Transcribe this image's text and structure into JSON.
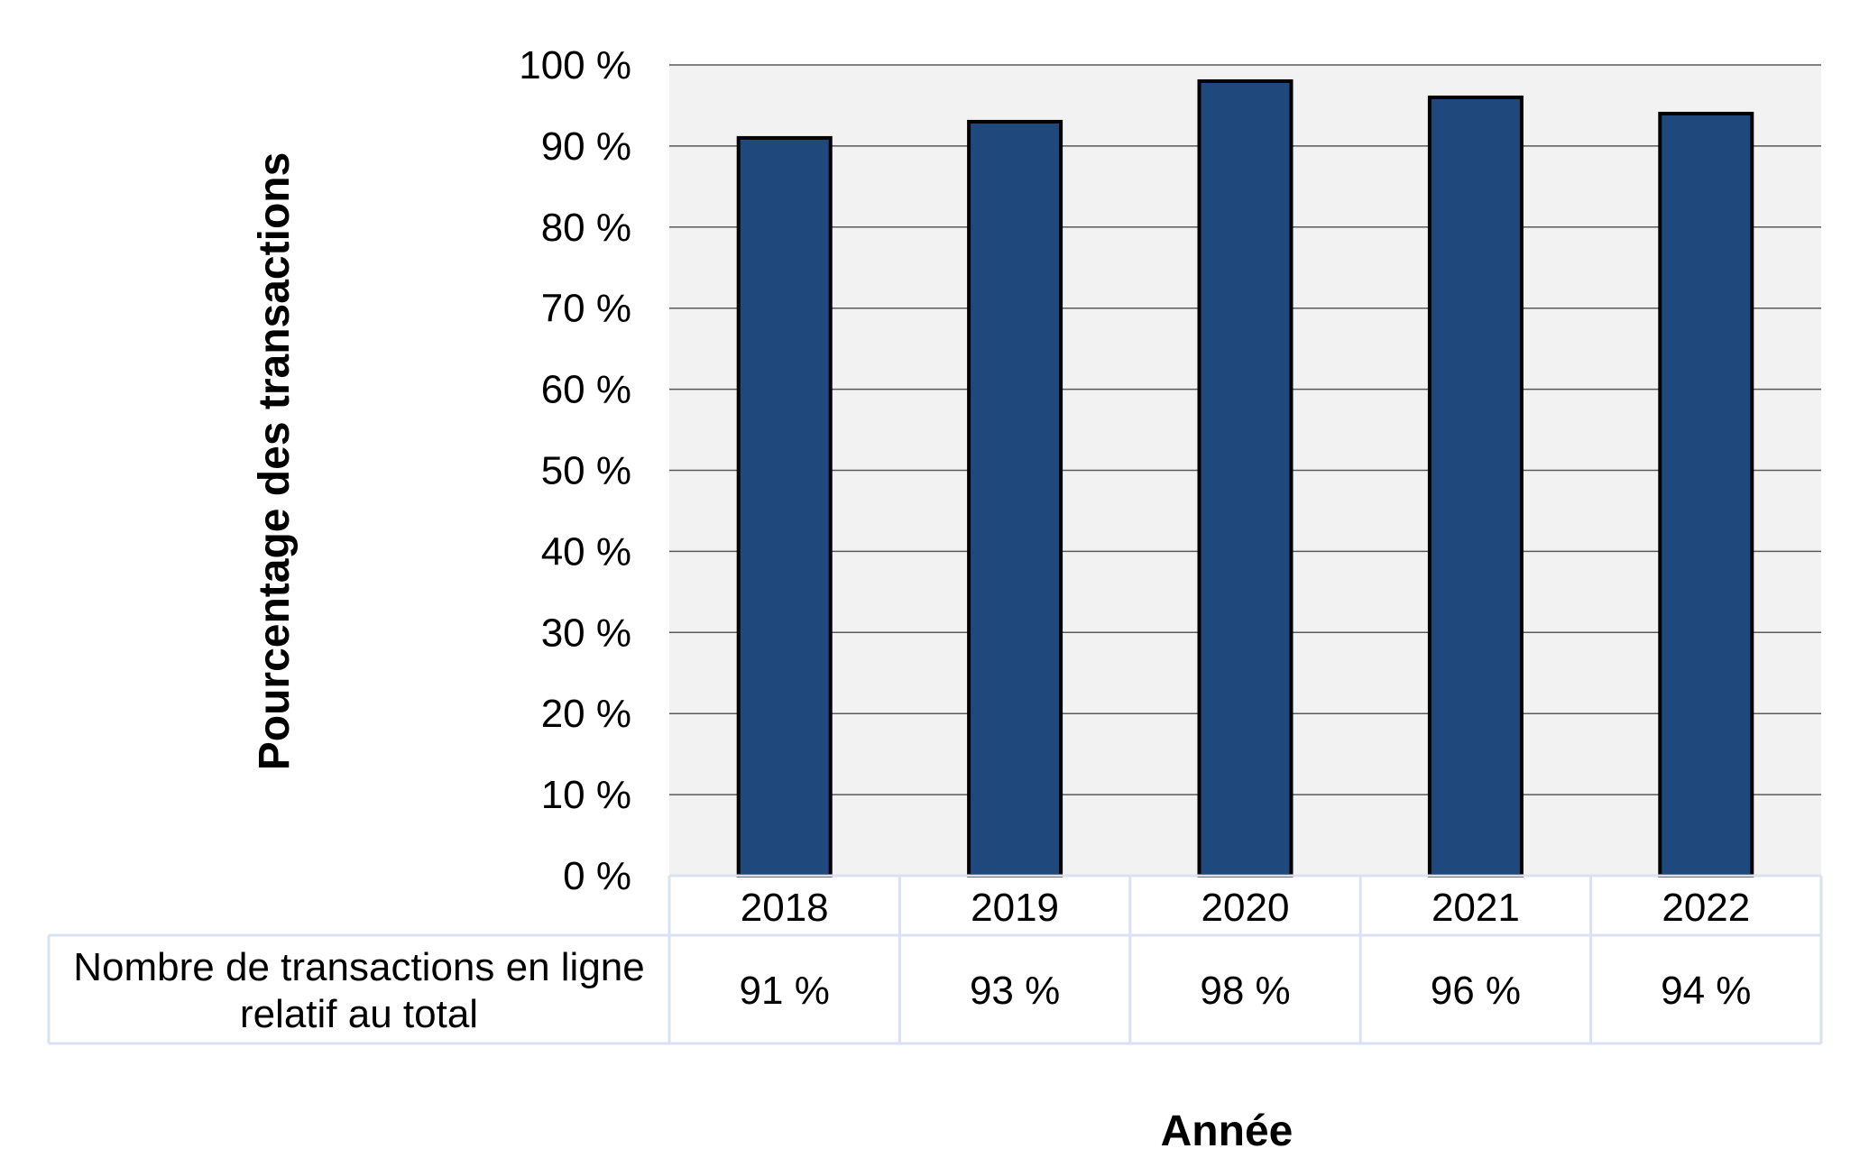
{
  "chart_data": {
    "type": "bar",
    "categories": [
      "2018",
      "2019",
      "2020",
      "2021",
      "2022"
    ],
    "series": [
      {
        "name": "Nombre de transactions en ligne relatif au total",
        "values": [
          91,
          93,
          98,
          96,
          94
        ]
      }
    ],
    "ylabel": "Pourcentage des transactions",
    "xlabel": "Année",
    "ylim": [
      0,
      100
    ],
    "y_ticks": [
      0,
      10,
      20,
      30,
      40,
      50,
      60,
      70,
      80,
      90,
      100
    ],
    "y_tick_labels": [
      "0 %",
      "10 %",
      "20 %",
      "30 %",
      "40 %",
      "50 %",
      "60 %",
      "70 %",
      "80 %",
      "90 %",
      "100 %"
    ],
    "grid": true,
    "data_table": {
      "row_label_lines": [
        "Nombre de transactions en ligne",
        "relatif au total"
      ],
      "cells": [
        "91 %",
        "93 %",
        "98 %",
        "96 %",
        "94 %"
      ]
    }
  },
  "colors": {
    "bar_fill": "#1F497D",
    "bar_stroke": "#000000",
    "plot_background": "#F2F2F2",
    "gridline": "#595959",
    "table_border": "#D9E1F2"
  }
}
